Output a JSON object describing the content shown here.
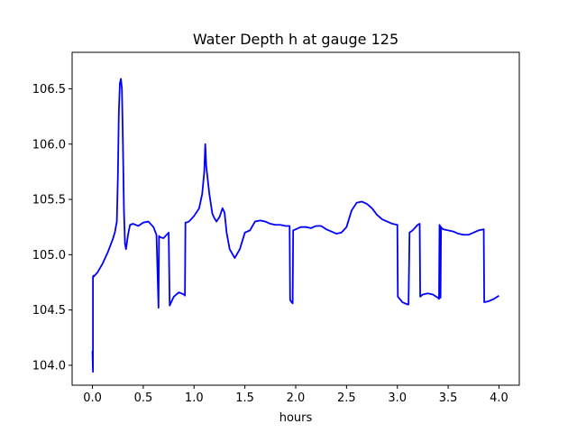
{
  "chart_data": {
    "type": "line",
    "title": "Water Depth h at gauge 125",
    "xlabel": "hours",
    "ylabel": "",
    "xlim": [
      -0.2,
      4.2
    ],
    "ylim": [
      103.82,
      106.83
    ],
    "xticks": [
      0.0,
      0.5,
      1.0,
      1.5,
      2.0,
      2.5,
      3.0,
      3.5,
      4.0
    ],
    "xtick_labels": [
      "0.0",
      "0.5",
      "1.0",
      "1.5",
      "2.0",
      "2.5",
      "3.0",
      "3.5",
      "4.0"
    ],
    "yticks": [
      104.0,
      104.5,
      105.0,
      105.5,
      106.0,
      106.5
    ],
    "ytick_labels": [
      "104.0",
      "104.5",
      "105.0",
      "105.5",
      "106.0",
      "106.5"
    ],
    "grid": false,
    "series": [
      {
        "color": "#0000ff",
        "x": [
          0.0,
          0.005,
          0.005,
          0.01,
          0.01,
          0.05,
          0.1,
          0.15,
          0.2,
          0.22,
          0.24,
          0.25,
          0.26,
          0.27,
          0.28,
          0.29,
          0.3,
          0.31,
          0.32,
          0.33,
          0.35,
          0.37,
          0.4,
          0.45,
          0.5,
          0.55,
          0.6,
          0.63,
          0.65,
          0.655,
          0.66,
          0.7,
          0.75,
          0.76,
          0.765,
          0.77,
          0.8,
          0.85,
          0.9,
          0.91,
          0.915,
          0.92,
          0.95,
          1.0,
          1.05,
          1.08,
          1.1,
          1.11,
          1.12,
          1.15,
          1.18,
          1.2,
          1.22,
          1.25,
          1.28,
          1.3,
          1.32,
          1.35,
          1.4,
          1.45,
          1.5,
          1.55,
          1.6,
          1.65,
          1.7,
          1.75,
          1.8,
          1.85,
          1.9,
          1.94,
          1.945,
          1.96,
          1.97,
          1.975,
          2.0,
          2.05,
          2.1,
          2.15,
          2.2,
          2.25,
          2.3,
          2.35,
          2.4,
          2.45,
          2.5,
          2.55,
          2.6,
          2.65,
          2.7,
          2.75,
          2.8,
          2.85,
          2.9,
          2.95,
          3.0,
          3.005,
          3.05,
          3.1,
          3.11,
          3.12,
          3.15,
          3.2,
          3.22,
          3.225,
          3.25,
          3.3,
          3.35,
          3.4,
          3.41,
          3.415,
          3.42,
          3.425,
          3.43,
          3.435,
          3.44,
          3.45,
          3.5,
          3.55,
          3.6,
          3.65,
          3.7,
          3.75,
          3.8,
          3.85,
          3.855,
          3.9,
          3.95,
          4.0
        ],
        "y": [
          104.13,
          103.94,
          104.8,
          104.81,
          104.8,
          104.84,
          104.92,
          105.02,
          105.14,
          105.2,
          105.3,
          105.7,
          106.3,
          106.55,
          106.59,
          106.5,
          106.0,
          105.4,
          105.1,
          105.05,
          105.18,
          105.27,
          105.28,
          105.26,
          105.29,
          105.3,
          105.25,
          105.18,
          104.52,
          105.17,
          105.16,
          105.15,
          105.2,
          104.54,
          104.55,
          104.56,
          104.62,
          104.66,
          104.64,
          104.63,
          105.29,
          105.29,
          105.3,
          105.35,
          105.42,
          105.55,
          105.75,
          106.0,
          105.8,
          105.55,
          105.37,
          105.33,
          105.3,
          105.34,
          105.42,
          105.38,
          105.2,
          105.05,
          104.97,
          105.05,
          105.2,
          105.22,
          105.3,
          105.31,
          105.3,
          105.28,
          105.27,
          105.27,
          105.26,
          105.26,
          104.59,
          104.57,
          104.56,
          105.22,
          105.23,
          105.25,
          105.25,
          105.24,
          105.26,
          105.26,
          105.23,
          105.21,
          105.19,
          105.2,
          105.25,
          105.4,
          105.47,
          105.48,
          105.46,
          105.42,
          105.36,
          105.32,
          105.3,
          105.28,
          105.27,
          104.62,
          104.57,
          104.55,
          104.55,
          105.2,
          105.22,
          105.27,
          105.28,
          104.62,
          104.64,
          104.65,
          104.64,
          104.61,
          104.6,
          105.27,
          105.26,
          104.61,
          105.25,
          105.24,
          105.24,
          105.23,
          105.22,
          105.21,
          105.19,
          105.18,
          105.18,
          105.2,
          105.22,
          105.23,
          104.57,
          104.58,
          104.6,
          104.63
        ]
      }
    ]
  }
}
